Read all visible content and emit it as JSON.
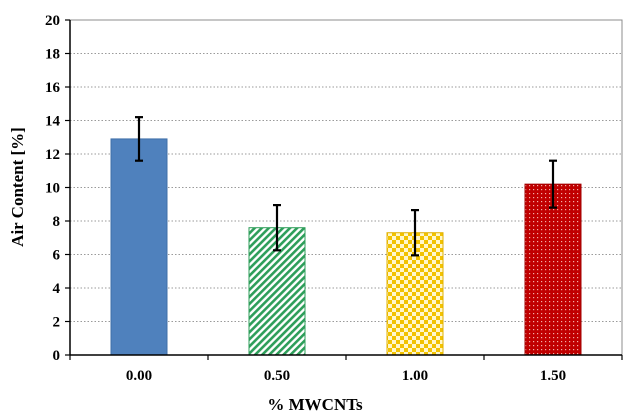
{
  "chart_data": {
    "type": "bar",
    "title": "",
    "xlabel": "% MWCNTs",
    "ylabel": "Air Content [%]",
    "categories": [
      "0.00",
      "0.50",
      "1.00",
      "1.50"
    ],
    "values": [
      12.9,
      7.6,
      7.3,
      10.2
    ],
    "error": [
      1.3,
      1.35,
      1.35,
      1.4
    ],
    "ylim": [
      0,
      20
    ],
    "yticks": [
      "0",
      "2",
      "4",
      "6",
      "8",
      "10",
      "12",
      "14",
      "16",
      "18",
      "20"
    ],
    "grid": true,
    "legend": "none",
    "bar_styles": [
      {
        "fill": "#4f81bd",
        "pattern": "solid"
      },
      {
        "fill": "#2e9e5a",
        "pattern": "diagonal-stripes"
      },
      {
        "fill": "#f2c200",
        "pattern": "checkerboard"
      },
      {
        "fill": "#c00000",
        "pattern": "dotted"
      }
    ]
  }
}
